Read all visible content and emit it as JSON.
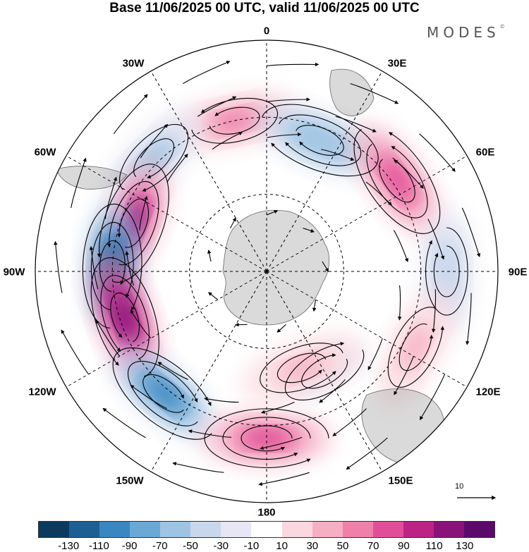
{
  "title": "Base 11/06/2025 00 UTC, valid 11/06/2025 00 UTC",
  "brand": "MODES",
  "brand_mark": "©",
  "lon_labels": {
    "l0": "0",
    "l30e": "30E",
    "l60e": "60E",
    "l90e": "90E",
    "l120e": "120E",
    "l150e": "150E",
    "l180": "180",
    "l150w": "150W",
    "l120w": "120W",
    "l90w": "90W",
    "l60w": "60W",
    "l30w": "30W"
  },
  "reference_vector": {
    "label": "10"
  },
  "colorbar": {
    "colors": [
      "#0b3a5e",
      "#1d5f92",
      "#3a86c0",
      "#6aa9d6",
      "#9fc4e3",
      "#c9d7ec",
      "#e6e6f4",
      "#ffffff",
      "#fbd8de",
      "#f6afc2",
      "#ee80aa",
      "#e14e98",
      "#bc2385",
      "#8a137a",
      "#5b0a6c"
    ],
    "tick_labels": [
      "-130",
      "-110",
      "-90",
      "-70",
      "-50",
      "-30",
      "-10",
      "10",
      "30",
      "50",
      "70",
      "90",
      "110",
      "130"
    ]
  },
  "chart_data": {
    "type": "polar-stereographic anomaly map with streamlines",
    "projection": "south polar stereographic",
    "field_units_range": [
      -130,
      130
    ],
    "anomaly_centers": [
      {
        "lon": -12,
        "colat": 60,
        "value": 50
      },
      {
        "lon": 22,
        "colat": 55,
        "value": -70
      },
      {
        "lon": 55,
        "colat": 62,
        "value": 80
      },
      {
        "lon": 90,
        "colat": 70,
        "value": -50
      },
      {
        "lon": 117,
        "colat": 65,
        "value": 30
      },
      {
        "lon": -45,
        "colat": 62,
        "value": -60
      },
      {
        "lon": -70,
        "colat": 55,
        "value": 110
      },
      {
        "lon": -88,
        "colat": 60,
        "value": -130
      },
      {
        "lon": -108,
        "colat": 58,
        "value": 120
      },
      {
        "lon": -140,
        "colat": 62,
        "value": -100
      },
      {
        "lon": 180,
        "colat": 65,
        "value": 80
      },
      {
        "lon": 150,
        "colat": 45,
        "value": -20
      },
      {
        "lon": 160,
        "colat": 40,
        "value": 30
      }
    ]
  }
}
